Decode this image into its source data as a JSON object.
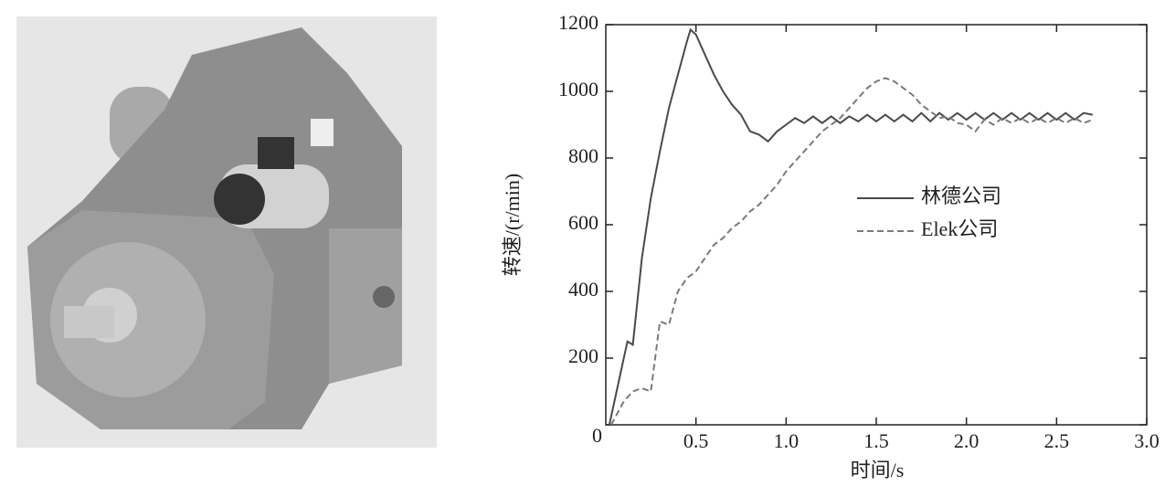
{
  "chart_data": {
    "type": "line",
    "xlabel": "时间/s",
    "ylabel": "转速/(r/min)",
    "xlim": [
      0,
      3
    ],
    "ylim": [
      0,
      1200
    ],
    "xticks": [
      {
        "value": 0.5,
        "label": "0.5"
      },
      {
        "value": 1,
        "label": "1.0"
      },
      {
        "value": 1.5,
        "label": "1.5"
      },
      {
        "value": 2,
        "label": "2.0"
      },
      {
        "value": 2.5,
        "label": "2.5"
      },
      {
        "value": 3,
        "label": "3.0"
      }
    ],
    "yticks": [
      0,
      200,
      400,
      600,
      800,
      1000,
      1200
    ],
    "legend": "center-right",
    "series": [
      {
        "name": "林德公司",
        "color": "#4a4a4a",
        "line_style": "solid",
        "x": [
          0.02,
          0.06,
          0.1,
          0.12,
          0.15,
          0.2,
          0.25,
          0.3,
          0.35,
          0.4,
          0.45,
          0.47,
          0.5,
          0.55,
          0.6,
          0.65,
          0.7,
          0.75,
          0.8,
          0.85,
          0.9,
          0.95,
          1.0,
          1.05,
          1.1,
          1.15,
          1.2,
          1.25,
          1.3,
          1.35,
          1.4,
          1.45,
          1.5,
          1.55,
          1.6,
          1.65,
          1.7,
          1.75,
          1.8,
          1.85,
          1.9,
          1.95,
          2.0,
          2.05,
          2.1,
          2.15,
          2.2,
          2.25,
          2.3,
          2.35,
          2.4,
          2.45,
          2.5,
          2.55,
          2.6,
          2.65,
          2.7
        ],
        "values": [
          0,
          100,
          200,
          250,
          240,
          500,
          680,
          820,
          950,
          1050,
          1150,
          1185,
          1170,
          1110,
          1050,
          1000,
          960,
          930,
          880,
          870,
          850,
          880,
          900,
          920,
          905,
          925,
          905,
          925,
          905,
          925,
          910,
          930,
          910,
          930,
          910,
          930,
          910,
          935,
          910,
          935,
          915,
          935,
          915,
          935,
          915,
          935,
          915,
          935,
          915,
          935,
          915,
          935,
          915,
          935,
          915,
          935,
          930
        ]
      },
      {
        "name": "Elek公司",
        "color": "#7a7a7a",
        "line_style": "dashed",
        "x": [
          0.03,
          0.1,
          0.15,
          0.2,
          0.25,
          0.3,
          0.35,
          0.4,
          0.45,
          0.5,
          0.55,
          0.6,
          0.65,
          0.7,
          0.75,
          0.8,
          0.85,
          0.9,
          0.95,
          1.0,
          1.05,
          1.1,
          1.15,
          1.2,
          1.25,
          1.3,
          1.35,
          1.4,
          1.45,
          1.5,
          1.55,
          1.6,
          1.65,
          1.7,
          1.75,
          1.8,
          1.85,
          1.9,
          1.95,
          2.0,
          2.05,
          2.1,
          2.15,
          2.2,
          2.25,
          2.3,
          2.35,
          2.4,
          2.45,
          2.5,
          2.55,
          2.6,
          2.65,
          2.7
        ],
        "values": [
          0,
          70,
          100,
          110,
          100,
          310,
          300,
          400,
          440,
          460,
          500,
          540,
          560,
          590,
          610,
          640,
          660,
          690,
          720,
          760,
          790,
          820,
          850,
          880,
          900,
          920,
          950,
          980,
          1010,
          1030,
          1040,
          1030,
          1010,
          990,
          960,
          940,
          920,
          925,
          905,
          900,
          880,
          915,
          900,
          920,
          905,
          920,
          905,
          920,
          905,
          920,
          905,
          920,
          905,
          915
        ]
      }
    ]
  }
}
